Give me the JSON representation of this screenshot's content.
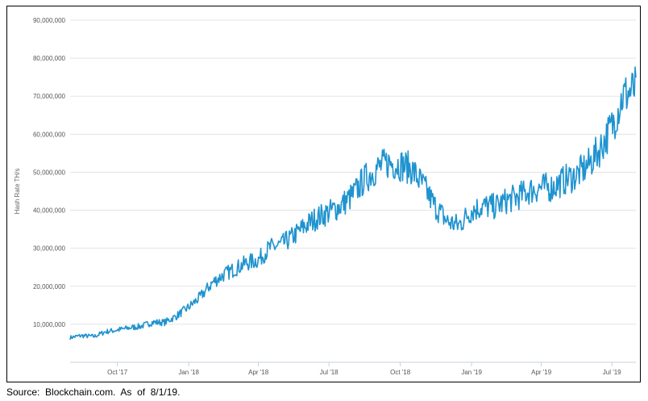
{
  "chart_data": {
    "type": "line",
    "title": "",
    "xlabel": "",
    "ylabel": "Hash Rate TH/s",
    "x_ticks": [
      "Oct '17",
      "Jan '18",
      "Apr '18",
      "Jul '18",
      "Oct '18",
      "Jan '19",
      "Apr '19",
      "Jul '19"
    ],
    "y_ticks": [
      "10,000,000",
      "20,000,000",
      "30,000,000",
      "40,000,000",
      "50,000,000",
      "60,000,000",
      "70,000,000",
      "80,000,000",
      "90,000,000"
    ],
    "ylim": [
      0,
      90000000
    ],
    "xlim": [
      "2017-08-01",
      "2019-08-01"
    ],
    "grid": "horizontal",
    "series": [
      {
        "color": "#1f93cf",
        "points": [
          [
            "2017-08-01",
            6500000
          ],
          [
            "2017-08-15",
            7000000
          ],
          [
            "2017-09-01",
            6800000
          ],
          [
            "2017-09-15",
            8000000
          ],
          [
            "2017-10-01",
            8500000
          ],
          [
            "2017-10-15",
            9000000
          ],
          [
            "2017-11-01",
            9500000
          ],
          [
            "2017-11-15",
            10500000
          ],
          [
            "2017-12-01",
            10500000
          ],
          [
            "2017-12-15",
            12000000
          ],
          [
            "2018-01-01",
            14500000
          ],
          [
            "2018-01-15",
            17000000
          ],
          [
            "2018-02-01",
            21000000
          ],
          [
            "2018-02-15",
            23000000
          ],
          [
            "2018-03-01",
            24500000
          ],
          [
            "2018-03-15",
            26000000
          ],
          [
            "2018-04-01",
            27000000
          ],
          [
            "2018-04-15",
            30000000
          ],
          [
            "2018-05-01",
            31000000
          ],
          [
            "2018-05-15",
            33000000
          ],
          [
            "2018-06-01",
            36000000
          ],
          [
            "2018-06-15",
            38000000
          ],
          [
            "2018-07-01",
            39500000
          ],
          [
            "2018-07-15",
            41000000
          ],
          [
            "2018-08-01",
            44000000
          ],
          [
            "2018-08-15",
            48000000
          ],
          [
            "2018-09-01",
            51000000
          ],
          [
            "2018-09-15",
            52500000
          ],
          [
            "2018-10-01",
            52000000
          ],
          [
            "2018-10-15",
            51000000
          ],
          [
            "2018-11-01",
            46000000
          ],
          [
            "2018-11-15",
            41000000
          ],
          [
            "2018-12-01",
            37000000
          ],
          [
            "2018-12-15",
            36000000
          ],
          [
            "2019-01-01",
            40000000
          ],
          [
            "2019-01-15",
            41000000
          ],
          [
            "2019-02-01",
            41000000
          ],
          [
            "2019-02-15",
            42500000
          ],
          [
            "2019-03-01",
            43500000
          ],
          [
            "2019-03-15",
            45000000
          ],
          [
            "2019-04-01",
            46000000
          ],
          [
            "2019-04-15",
            46000000
          ],
          [
            "2019-05-01",
            48000000
          ],
          [
            "2019-05-15",
            49000000
          ],
          [
            "2019-06-01",
            52000000
          ],
          [
            "2019-06-15",
            56000000
          ],
          [
            "2019-07-01",
            62000000
          ],
          [
            "2019-07-15",
            70000000
          ],
          [
            "2019-08-01",
            72000000
          ]
        ]
      }
    ]
  },
  "source_note": "Source:  Blockchain.com.  As  of  8/1/19."
}
